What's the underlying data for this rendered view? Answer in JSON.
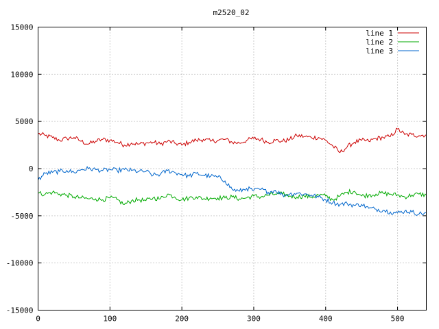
{
  "chart_data": {
    "type": "line",
    "title": "m2520_02",
    "xlabel": "",
    "ylabel": "",
    "xlim": [
      0,
      540
    ],
    "ylim": [
      -15000,
      15000
    ],
    "xticks": [
      "0",
      "100",
      "200",
      "300",
      "400",
      "500"
    ],
    "yticks": [
      "15000",
      "10000",
      "5000",
      "0",
      "-5000",
      "-10000",
      "-15000"
    ],
    "grid": true,
    "legend_position": "top-right",
    "series": [
      {
        "name": "line 1",
        "color": "#cc0000",
        "x": [
          0,
          10,
          20,
          30,
          40,
          50,
          60,
          70,
          80,
          90,
          100,
          110,
          120,
          130,
          140,
          150,
          160,
          170,
          180,
          190,
          200,
          210,
          220,
          230,
          240,
          250,
          260,
          270,
          280,
          290,
          300,
          310,
          320,
          330,
          340,
          350,
          360,
          370,
          380,
          390,
          400,
          410,
          420,
          430,
          440,
          450,
          460,
          470,
          480,
          490,
          500,
          510,
          520,
          530,
          540
        ],
        "y": [
          3700,
          3500,
          3300,
          3000,
          3200,
          3300,
          2900,
          2600,
          2900,
          3100,
          3000,
          2800,
          2500,
          2700,
          2600,
          2700,
          2800,
          2600,
          2900,
          2700,
          2500,
          2800,
          3000,
          3100,
          2900,
          3000,
          3100,
          2800,
          2700,
          3000,
          3200,
          3100,
          2800,
          3000,
          2900,
          3100,
          3500,
          3400,
          3300,
          3300,
          3000,
          2400,
          1700,
          2300,
          2800,
          3000,
          2900,
          3200,
          3300,
          3400,
          4200,
          3600,
          3600,
          3500,
          3600
        ]
      },
      {
        "name": "line 2",
        "color": "#00aa00",
        "x": [
          0,
          10,
          20,
          30,
          40,
          50,
          60,
          70,
          80,
          90,
          100,
          110,
          120,
          130,
          140,
          150,
          160,
          170,
          180,
          190,
          200,
          210,
          220,
          230,
          240,
          250,
          260,
          270,
          280,
          290,
          300,
          310,
          320,
          330,
          340,
          350,
          360,
          370,
          380,
          390,
          400,
          410,
          420,
          430,
          440,
          450,
          460,
          470,
          480,
          490,
          500,
          510,
          520,
          530,
          540
        ],
        "y": [
          -2600,
          -2700,
          -2500,
          -2700,
          -2800,
          -3000,
          -3100,
          -3200,
          -3200,
          -3300,
          -3100,
          -3300,
          -3800,
          -3400,
          -3300,
          -3400,
          -3100,
          -3200,
          -2700,
          -3000,
          -3300,
          -3100,
          -3000,
          -3200,
          -3100,
          -3100,
          -3100,
          -3000,
          -3200,
          -3100,
          -2900,
          -3000,
          -2800,
          -2700,
          -2700,
          -2900,
          -3000,
          -2900,
          -3000,
          -2800,
          -2900,
          -3300,
          -2900,
          -2500,
          -2400,
          -2900,
          -2800,
          -2700,
          -2600,
          -2700,
          -2800,
          -3000,
          -2800,
          -2700,
          -2800
        ]
      },
      {
        "name": "line 3",
        "color": "#0066cc",
        "x": [
          0,
          10,
          20,
          30,
          40,
          50,
          60,
          70,
          80,
          90,
          100,
          110,
          120,
          130,
          140,
          150,
          160,
          170,
          180,
          190,
          200,
          210,
          220,
          230,
          240,
          250,
          260,
          270,
          280,
          290,
          300,
          310,
          320,
          330,
          340,
          350,
          360,
          370,
          380,
          390,
          400,
          410,
          420,
          430,
          440,
          450,
          460,
          470,
          480,
          490,
          500,
          510,
          520,
          530,
          540
        ],
        "y": [
          -1200,
          -500,
          -400,
          -300,
          -200,
          -400,
          -100,
          0,
          -100,
          -200,
          -100,
          -200,
          -100,
          -200,
          -300,
          -300,
          -700,
          -600,
          -200,
          -400,
          -600,
          -800,
          -500,
          -700,
          -800,
          -900,
          -1300,
          -2200,
          -2400,
          -2100,
          -2300,
          -2200,
          -2500,
          -2300,
          -2800,
          -2700,
          -2600,
          -2700,
          -2800,
          -3000,
          -3300,
          -3600,
          -3800,
          -3700,
          -3900,
          -3800,
          -4200,
          -4300,
          -4400,
          -4600,
          -4700,
          -4500,
          -4600,
          -4800,
          -4700
        ]
      }
    ]
  }
}
